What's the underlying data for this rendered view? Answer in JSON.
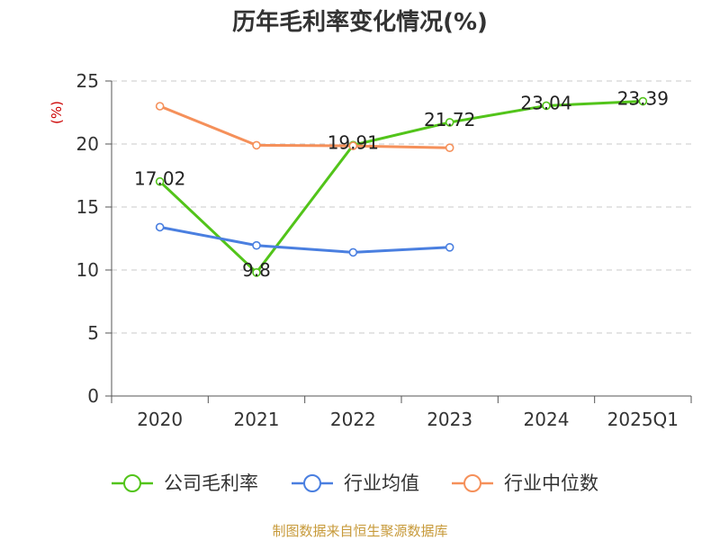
{
  "chart_data": {
    "type": "line",
    "title": "历年毛利率变化情况(%)",
    "ylabel": "(%)",
    "ylim": [
      0,
      25
    ],
    "yticks": [
      0,
      5,
      10,
      15,
      20,
      25
    ],
    "categories": [
      "2020",
      "2021",
      "2022",
      "2023",
      "2024",
      "2025Q1"
    ],
    "grid": true,
    "legend_placement": "bottom",
    "series": [
      {
        "name": "公司毛利率",
        "color": "#52c41a",
        "values": [
          17.02,
          9.8,
          19.91,
          21.72,
          23.04,
          23.39
        ],
        "labels": [
          "17.02",
          "9.8",
          "19.91",
          "21.72",
          "23.04",
          "23.39"
        ]
      },
      {
        "name": "行业均值",
        "color": "#4a7fe0",
        "values": [
          13.4,
          11.95,
          11.4,
          11.8,
          null,
          null
        ]
      },
      {
        "name": "行业中位数",
        "color": "#f5905a",
        "values": [
          23.0,
          19.9,
          19.85,
          19.7,
          null,
          null
        ]
      }
    ],
    "source": "制图数据来自恒生聚源数据库",
    "ylabel_color": "#cc0000",
    "source_color": "#c79a3a"
  }
}
